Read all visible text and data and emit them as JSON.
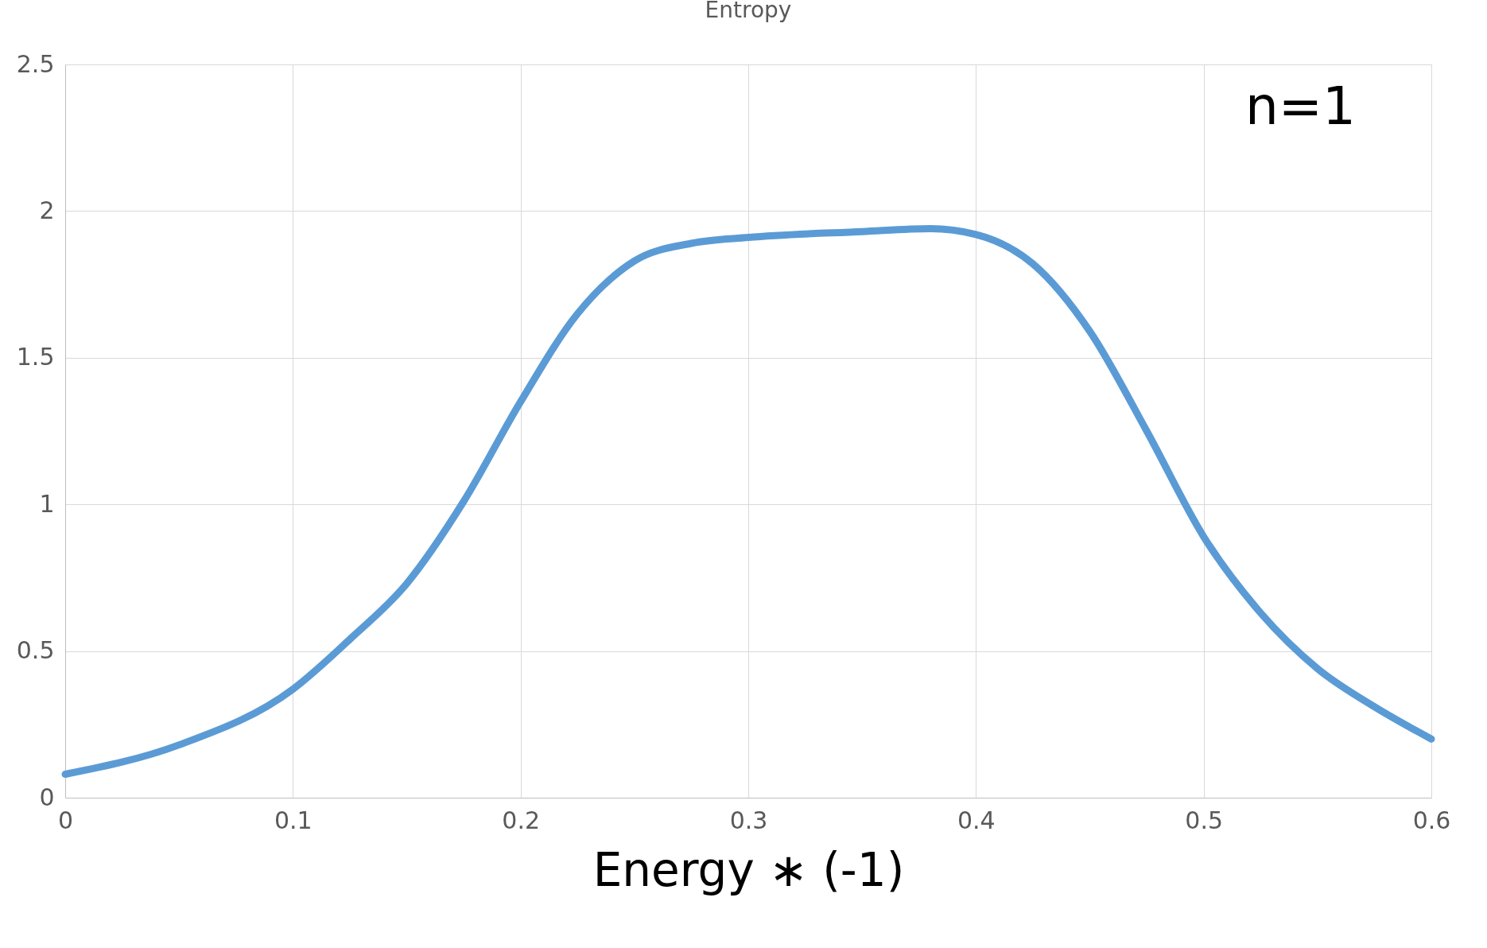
{
  "chart_data": {
    "type": "line",
    "title": "Entropy",
    "xlabel": "Energy  ∗ (-1)",
    "annotations": [
      "n=1"
    ],
    "x": [
      0,
      0.05,
      0.1,
      0.125,
      0.15,
      0.175,
      0.2,
      0.225,
      0.25,
      0.275,
      0.3,
      0.35,
      0.38,
      0.4,
      0.425,
      0.45,
      0.475,
      0.5,
      0.525,
      0.55,
      0.575,
      0.6
    ],
    "series": [
      {
        "color": "#5b9bd5",
        "values": [
          0.08,
          0.18,
          0.37,
          0.54,
          0.73,
          1.01,
          1.35,
          1.65,
          1.83,
          1.89,
          1.91,
          1.93,
          1.94,
          1.92,
          1.82,
          1.59,
          1.25,
          0.89,
          0.63,
          0.44,
          0.31,
          0.2
        ]
      }
    ],
    "xlim": [
      0,
      0.6
    ],
    "xticks": [
      0,
      0.1,
      0.2,
      0.3,
      0.4,
      0.5,
      0.6
    ],
    "ylim": [
      0,
      2.5
    ],
    "yticks": [
      0,
      0.5,
      1,
      1.5,
      2,
      2.5
    ],
    "grid": true,
    "legend": false,
    "marker": "none",
    "line_style": "solid"
  }
}
